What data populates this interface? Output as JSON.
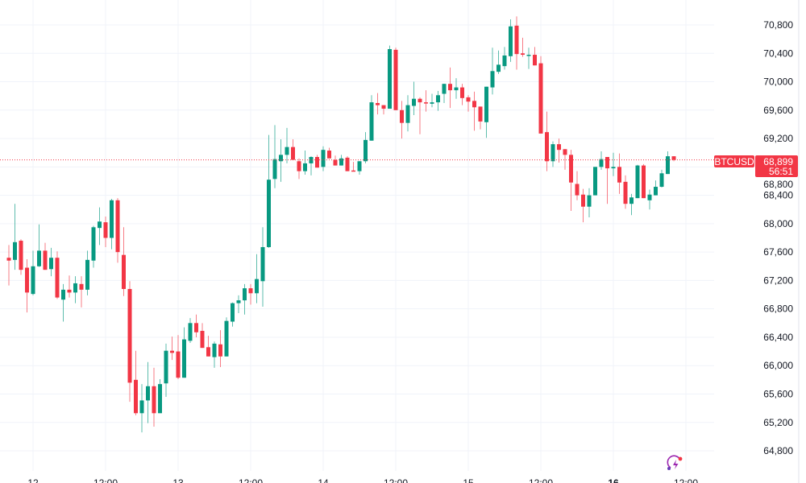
{
  "chart_data": {
    "type": "candlestick",
    "symbol": "BTCUSD",
    "interval_hours": 1,
    "last_price": "68,899",
    "countdown": "56:51",
    "ylim": [
      64600,
      71000
    ],
    "y_ticks": [
      "64,800",
      "65,200",
      "65,600",
      "66,000",
      "66,400",
      "66,800",
      "67,200",
      "67,600",
      "68,000",
      "68,400",
      "68,800",
      "69,200",
      "69,600",
      "70,000",
      "70,400",
      "70,800"
    ],
    "y_tick_values": [
      64800,
      65200,
      65600,
      66000,
      66400,
      66800,
      67200,
      67600,
      68000,
      68400,
      68800,
      69200,
      69600,
      70000,
      70400,
      70800
    ],
    "x_ticks": [
      {
        "label": "12",
        "candle_index": 4
      },
      {
        "label": "12:00",
        "candle_index": 16
      },
      {
        "label": "13",
        "candle_index": 28
      },
      {
        "label": "12:00",
        "candle_index": 40
      },
      {
        "label": "14",
        "candle_index": 52
      },
      {
        "label": "12:00",
        "candle_index": 64
      },
      {
        "label": "15",
        "candle_index": 76
      },
      {
        "label": "12:00",
        "candle_index": 88
      },
      {
        "label": "16",
        "candle_index": 100
      },
      {
        "label": "12:00",
        "candle_index": 112
      }
    ],
    "grid": true,
    "colors": {
      "up": "#089981",
      "down": "#F23645",
      "grid": "#f0f3fa",
      "text": "#131722",
      "price_line": "#F23645"
    },
    "ohlc": [
      [
        67520,
        67700,
        67130,
        67480
      ],
      [
        67490,
        68280,
        67350,
        67740
      ],
      [
        67760,
        67780,
        67280,
        67350
      ],
      [
        67380,
        67500,
        66750,
        67030
      ],
      [
        67010,
        67620,
        66990,
        67400
      ],
      [
        67400,
        67990,
        67390,
        67620
      ],
      [
        67620,
        67730,
        67350,
        67350
      ],
      [
        67360,
        67660,
        67260,
        67520
      ],
      [
        67520,
        67610,
        66940,
        66960
      ],
      [
        66930,
        67150,
        66620,
        67070
      ],
      [
        67070,
        67270,
        66960,
        67030
      ],
      [
        67030,
        67260,
        66880,
        67160
      ],
      [
        67150,
        67260,
        66820,
        67070
      ],
      [
        67070,
        67620,
        66990,
        67490
      ],
      [
        67480,
        67970,
        67380,
        67950
      ],
      [
        67940,
        68230,
        67700,
        68030
      ],
      [
        68020,
        68100,
        67670,
        67800
      ],
      [
        67800,
        68350,
        67640,
        68330
      ],
      [
        68330,
        68360,
        67450,
        67600
      ],
      [
        67560,
        67950,
        66980,
        67080
      ],
      [
        67080,
        67190,
        65490,
        65760
      ],
      [
        65800,
        66210,
        65300,
        65330
      ],
      [
        65330,
        65740,
        65060,
        65510
      ],
      [
        65510,
        66050,
        65190,
        65710
      ],
      [
        65710,
        65970,
        65140,
        65330
      ],
      [
        65330,
        65810,
        65330,
        65740
      ],
      [
        65750,
        66310,
        65560,
        66210
      ],
      [
        66210,
        66410,
        66080,
        66180
      ],
      [
        66200,
        66430,
        65810,
        65830
      ],
      [
        65830,
        66540,
        65830,
        66370
      ],
      [
        66350,
        66670,
        66320,
        66600
      ],
      [
        66600,
        66720,
        66400,
        66470
      ],
      [
        66490,
        66600,
        66250,
        66250
      ],
      [
        66260,
        66420,
        66130,
        66130
      ],
      [
        66120,
        66340,
        65970,
        66310
      ],
      [
        66300,
        66500,
        65980,
        66130
      ],
      [
        66130,
        66680,
        66130,
        66630
      ],
      [
        66620,
        66890,
        66550,
        66880
      ],
      [
        66880,
        66990,
        66740,
        66920
      ],
      [
        66920,
        67150,
        66720,
        67090
      ],
      [
        67090,
        67150,
        66860,
        67020
      ],
      [
        67020,
        67570,
        66880,
        67220
      ],
      [
        67190,
        67950,
        66830,
        67670
      ],
      [
        67670,
        69250,
        67660,
        68620
      ],
      [
        68630,
        69390,
        68500,
        68910
      ],
      [
        68880,
        69190,
        68590,
        68970
      ],
      [
        68970,
        69350,
        68850,
        69080
      ],
      [
        69080,
        69190,
        68900,
        68900
      ],
      [
        68880,
        68920,
        68630,
        68740
      ],
      [
        68740,
        69030,
        68690,
        68850
      ],
      [
        68850,
        68950,
        68680,
        68940
      ],
      [
        68940,
        68970,
        68790,
        68790
      ],
      [
        68800,
        69090,
        68740,
        69040
      ],
      [
        69030,
        69070,
        68920,
        68920
      ],
      [
        68900,
        68960,
        68820,
        68820
      ],
      [
        68820,
        68970,
        68820,
        68920
      ],
      [
        68930,
        68950,
        68740,
        68740
      ],
      [
        68750,
        68870,
        68740,
        68740
      ],
      [
        68740,
        68880,
        68690,
        68880
      ],
      [
        68880,
        69290,
        68850,
        69180
      ],
      [
        69170,
        69810,
        69170,
        69710
      ],
      [
        69700,
        69840,
        69540,
        69670
      ],
      [
        69670,
        69670,
        69540,
        69620
      ],
      [
        69620,
        70510,
        69620,
        70460
      ],
      [
        70450,
        70480,
        69600,
        69600
      ],
      [
        69600,
        69730,
        69200,
        69420
      ],
      [
        69420,
        69810,
        69300,
        69670
      ],
      [
        69660,
        70000,
        69530,
        69760
      ],
      [
        69760,
        69780,
        69260,
        69710
      ],
      [
        69710,
        69880,
        69580,
        69700
      ],
      [
        69690,
        69830,
        69640,
        69710
      ],
      [
        69710,
        69870,
        69590,
        69810
      ],
      [
        69830,
        69970,
        69700,
        69970
      ],
      [
        69970,
        70200,
        69630,
        69880
      ],
      [
        69880,
        70050,
        69760,
        69920
      ],
      [
        69920,
        69970,
        69670,
        69770
      ],
      [
        69780,
        69810,
        69580,
        69720
      ],
      [
        69730,
        69860,
        69310,
        69640
      ],
      [
        69650,
        69650,
        69330,
        69440
      ],
      [
        69430,
        69930,
        69210,
        69930
      ],
      [
        69920,
        70480,
        69820,
        70150
      ],
      [
        70140,
        70440,
        70110,
        70240
      ],
      [
        70220,
        70490,
        70170,
        70370
      ],
      [
        70360,
        70880,
        70280,
        70780
      ],
      [
        70790,
        70920,
        70170,
        70390
      ],
      [
        70400,
        70620,
        70350,
        70380
      ],
      [
        70370,
        70480,
        70180,
        70380
      ],
      [
        70380,
        70490,
        70230,
        70230
      ],
      [
        70260,
        70360,
        69270,
        69270
      ],
      [
        69290,
        69580,
        68740,
        68880
      ],
      [
        68880,
        69160,
        68800,
        69120
      ],
      [
        69120,
        69200,
        68860,
        69040
      ],
      [
        69050,
        69050,
        68760,
        68970
      ],
      [
        68970,
        69040,
        68180,
        68580
      ],
      [
        68560,
        68740,
        68330,
        68400
      ],
      [
        68410,
        68490,
        68020,
        68240
      ],
      [
        68240,
        68500,
        68090,
        68400
      ],
      [
        68400,
        68800,
        68400,
        68800
      ],
      [
        68800,
        69020,
        68760,
        68910
      ],
      [
        68940,
        68940,
        68280,
        68780
      ],
      [
        68780,
        69000,
        68670,
        68800
      ],
      [
        68800,
        68990,
        68420,
        68580
      ],
      [
        68590,
        68680,
        68210,
        68280
      ],
      [
        68280,
        68420,
        68120,
        68370
      ],
      [
        68360,
        68830,
        68360,
        68820
      ],
      [
        68820,
        68840,
        68360,
        68360
      ],
      [
        68330,
        68480,
        68200,
        68410
      ],
      [
        68400,
        68610,
        68400,
        68520
      ],
      [
        68520,
        68760,
        68510,
        68710
      ],
      [
        68700,
        69020,
        68700,
        68950
      ],
      [
        68950,
        68950,
        68880,
        68899
      ]
    ]
  },
  "icons": {
    "bottom_right": "lightning-refresh-icon"
  }
}
